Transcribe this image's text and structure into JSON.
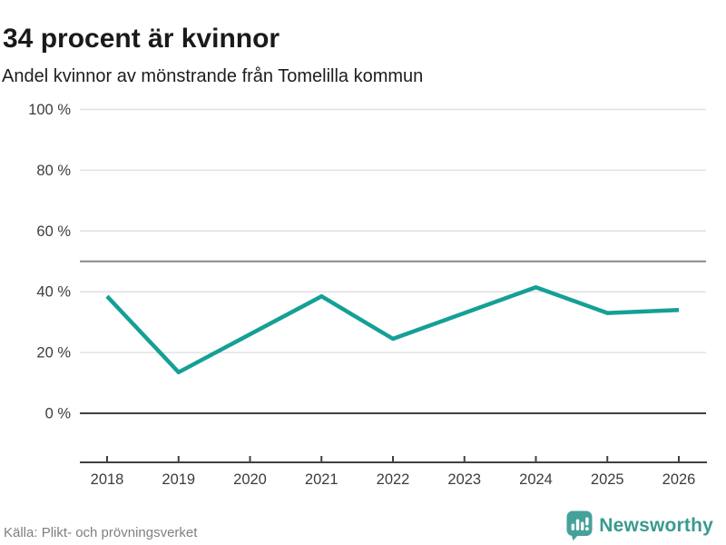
{
  "header": {
    "title": "34 procent är kvinnor",
    "subtitle": "Andel kvinnor av mönstrande från Tomelilla kommun"
  },
  "footer": {
    "source": "Källa: Plikt- och prövningsverket",
    "logo_text": "Newsworthy",
    "logo_icon": "bar-chart-speech-bubble-icon"
  },
  "colors": {
    "line": "#14a096",
    "grid": "#e2e2e2",
    "axis": "#414141",
    "zero_line": "#414141",
    "reference_line": "#87888c",
    "tick_label": "#3c3c3c",
    "logo_icon": "#45a29a",
    "logo_text": "#399a91"
  },
  "chart_data": {
    "type": "line",
    "title": "34 procent är kvinnor",
    "subtitle": "Andel kvinnor av mönstrande från Tomelilla kommun",
    "categories": [
      2018,
      2019,
      2020,
      2021,
      2022,
      2023,
      2024,
      2025,
      2026
    ],
    "series": [
      {
        "name": "Andel kvinnor av mönstrande",
        "values": [
          38.5,
          13.5,
          26,
          38.5,
          24.5,
          33,
          41.5,
          33,
          34
        ]
      }
    ],
    "ylim": [
      0,
      100
    ],
    "yticks": [
      0,
      20,
      40,
      60,
      80,
      100
    ],
    "ytick_suffix": " %",
    "reference_line": 50,
    "grid": true,
    "legend_position": "none",
    "source": "Källa: Plikt- och prövningsverket"
  }
}
